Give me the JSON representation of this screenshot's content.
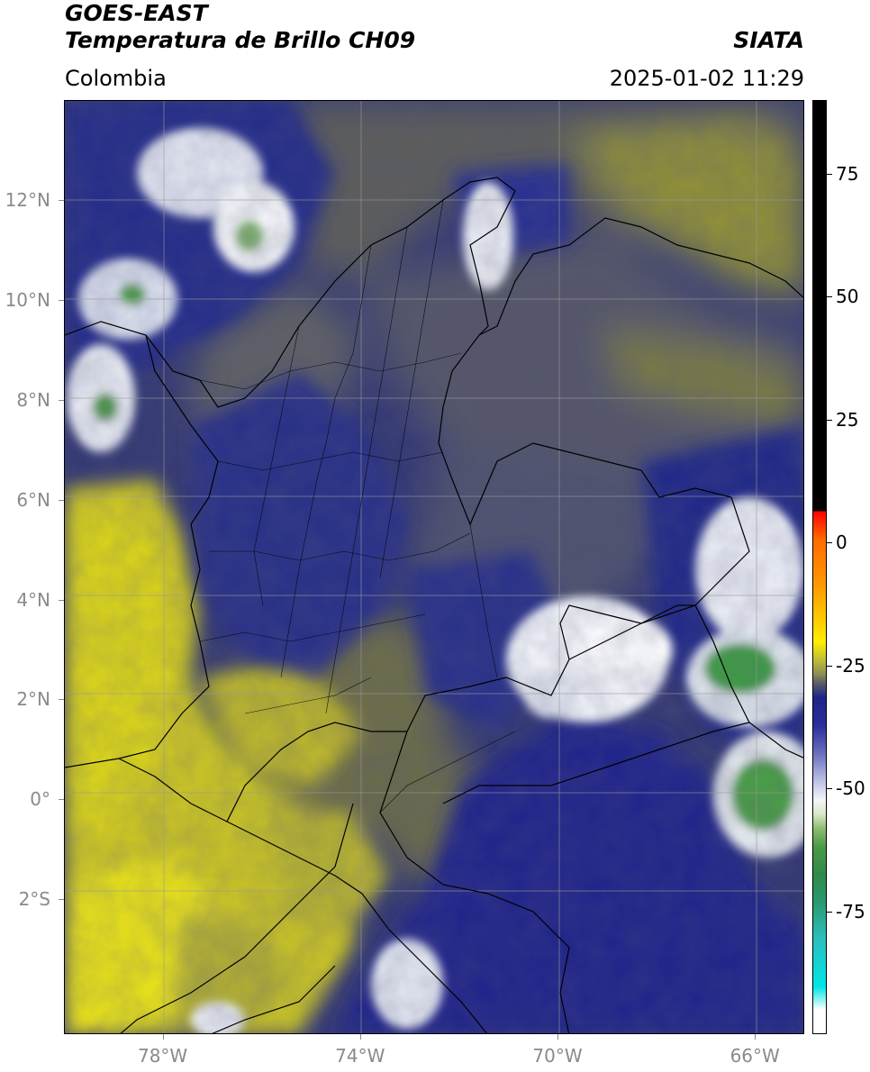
{
  "header": {
    "satellite": "GOES-EAST",
    "product": "Temperatura de Brillo CH09",
    "source": "SIATA",
    "region": "Colombia",
    "datetime": "2025-01-02 11:29"
  },
  "map": {
    "lat_range": [
      -4.7,
      14.0
    ],
    "lon_range": [
      -80.0,
      -65.0
    ],
    "lat_labels": [
      {
        "lat": 12,
        "label": "12°N"
      },
      {
        "lat": 10,
        "label": "10°N"
      },
      {
        "lat": 8,
        "label": "8°N"
      },
      {
        "lat": 6,
        "label": "6°N"
      },
      {
        "lat": 4,
        "label": "4°N"
      },
      {
        "lat": 2,
        "label": "2°N"
      },
      {
        "lat": 0,
        "label": "0°"
      },
      {
        "lat": -2,
        "label": "2°S"
      }
    ],
    "lon_labels": [
      {
        "lon": -78,
        "label": "78°W"
      },
      {
        "lon": -74,
        "label": "74°W"
      },
      {
        "lon": -70,
        "label": "70°W"
      },
      {
        "lon": -66,
        "label": "66°W"
      }
    ],
    "grid": true,
    "colors": {
      "warm_yellow": "#c8c226",
      "mid_gray": "#55566a",
      "cold_blue": "#252d86",
      "very_cold_white": "#f0f2f6",
      "coldest_green": "#3f9a47",
      "border": "#000000"
    }
  },
  "colorbar": {
    "range": [
      -100,
      90
    ],
    "ticks": [
      {
        "value": 75,
        "label": "75"
      },
      {
        "value": 50,
        "label": "50"
      },
      {
        "value": 25,
        "label": "25"
      },
      {
        "value": 0,
        "label": "0"
      },
      {
        "value": -25,
        "label": "-25"
      },
      {
        "value": -50,
        "label": "-50"
      },
      {
        "value": -75,
        "label": "-75"
      }
    ]
  }
}
